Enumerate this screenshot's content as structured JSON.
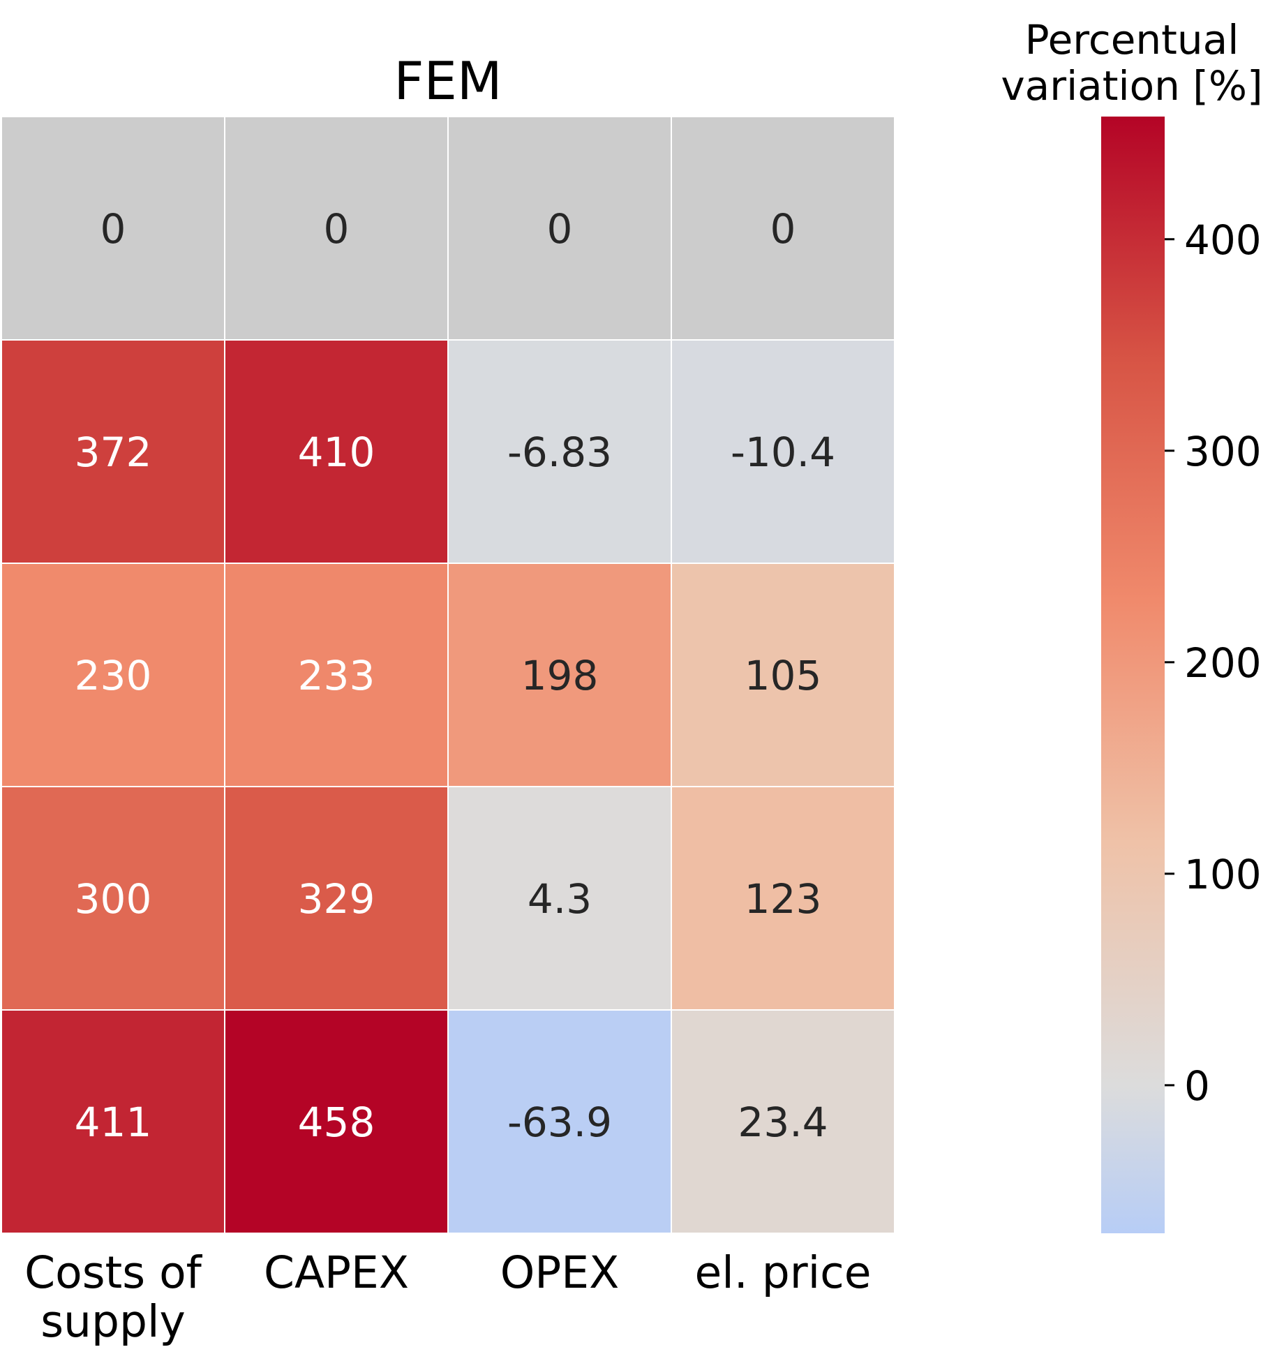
{
  "chart_data": {
    "type": "heatmap",
    "title": "FEM",
    "columns": [
      [
        "Costs of",
        "supply"
      ],
      [
        "CAPEX"
      ],
      [
        "OPEX"
      ],
      [
        "el. price"
      ]
    ],
    "rows": [
      {
        "values": [
          0,
          0,
          0,
          0
        ],
        "labels": [
          "0",
          "0",
          "0",
          "0"
        ],
        "baseline": true
      },
      {
        "values": [
          372,
          410,
          -6.83,
          -10.4
        ],
        "labels": [
          "372",
          "410",
          "-6.83",
          "-10.4"
        ],
        "baseline": false
      },
      {
        "values": [
          230,
          233,
          198,
          105
        ],
        "labels": [
          "230",
          "233",
          "198",
          "105"
        ],
        "baseline": false
      },
      {
        "values": [
          300,
          329,
          4.3,
          123
        ],
        "labels": [
          "300",
          "329",
          "4.3",
          "123"
        ],
        "baseline": false
      },
      {
        "values": [
          411,
          458,
          -63.9,
          23.4
        ],
        "labels": [
          "411",
          "458",
          "-63.9",
          "23.4"
        ],
        "baseline": false
      }
    ],
    "colorbar": {
      "title": [
        "Percentual",
        "variation [%]"
      ],
      "min": -70,
      "max": 458,
      "ticks": [
        0,
        100,
        200,
        300,
        400
      ],
      "tick_labels": [
        "0",
        "100",
        "200",
        "300",
        "400"
      ],
      "colormap": "coolwarm (centered at 0)"
    },
    "colors": {
      "baseline": "#cccccc",
      "low": "#b7cdf6",
      "zero": "#dcdcdc",
      "mid_pos": "#efc2a8",
      "high": "#b40426",
      "dark_text": "#262626",
      "light_text": "#ffffff"
    },
    "grid": false
  }
}
